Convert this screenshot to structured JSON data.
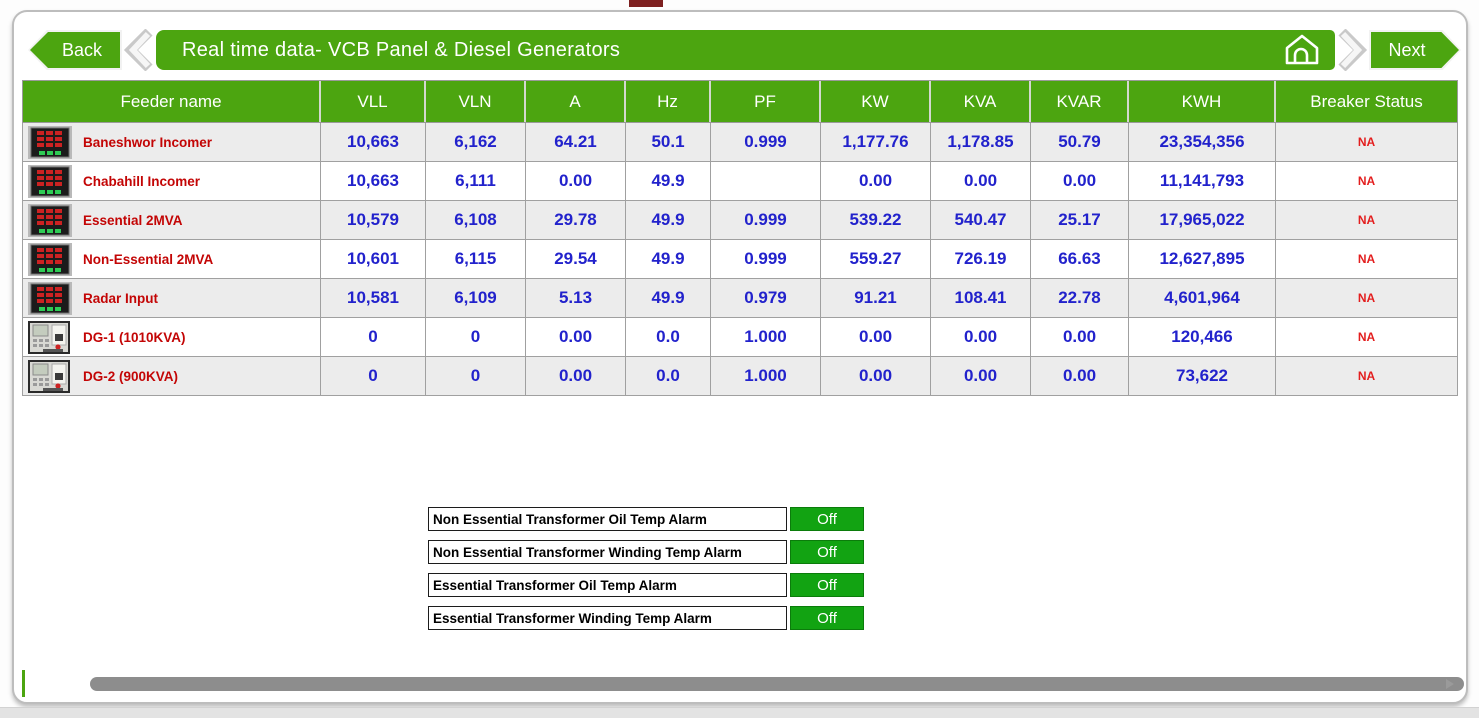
{
  "topbar": {
    "back_label": "Back",
    "title": "Real time data- VCB Panel & Diesel Generators",
    "next_label": "Next"
  },
  "table": {
    "columns": [
      "Feeder name",
      "VLL",
      "VLN",
      "A",
      "Hz",
      "PF",
      "KW",
      "KVA",
      "KVAR",
      "KWH",
      "Breaker Status"
    ],
    "rows": [
      {
        "icon": "power-meter-icon",
        "name": "Baneshwor Incomer",
        "vll": "10,663",
        "vln": "6,162",
        "a": "64.21",
        "hz": "50.1",
        "pf": "0.999",
        "kw": "1,177.76",
        "kva": "1,178.85",
        "kvar": "50.79",
        "kwh": "23,354,356",
        "breaker": "NA"
      },
      {
        "icon": "power-meter-icon",
        "name": "Chabahill Incomer",
        "vll": "10,663",
        "vln": "6,111",
        "a": "0.00",
        "hz": "49.9",
        "pf": "",
        "kw": "0.00",
        "kva": "0.00",
        "kvar": "0.00",
        "kwh": "11,141,793",
        "breaker": "NA"
      },
      {
        "icon": "power-meter-icon",
        "name": "Essential 2MVA",
        "vll": "10,579",
        "vln": "6,108",
        "a": "29.78",
        "hz": "49.9",
        "pf": "0.999",
        "kw": "539.22",
        "kva": "540.47",
        "kvar": "25.17",
        "kwh": "17,965,022",
        "breaker": "NA"
      },
      {
        "icon": "power-meter-icon",
        "name": "Non-Essential 2MVA",
        "vll": "10,601",
        "vln": "6,115",
        "a": "29.54",
        "hz": "49.9",
        "pf": "0.999",
        "kw": "559.27",
        "kva": "726.19",
        "kvar": "66.63",
        "kwh": "12,627,895",
        "breaker": "NA"
      },
      {
        "icon": "power-meter-icon",
        "name": "Radar Input",
        "vll": "10,581",
        "vln": "6,109",
        "a": "5.13",
        "hz": "49.9",
        "pf": "0.979",
        "kw": "91.21",
        "kva": "108.41",
        "kvar": "22.78",
        "kwh": "4,601,964",
        "breaker": "NA"
      },
      {
        "icon": "generator-controller-icon",
        "name": "DG-1 (1010KVA)",
        "vll": "0",
        "vln": "0",
        "a": "0.00",
        "hz": "0.0",
        "pf": "1.000",
        "kw": "0.00",
        "kva": "0.00",
        "kvar": "0.00",
        "kwh": "120,466",
        "breaker": "NA"
      },
      {
        "icon": "generator-controller-icon",
        "name": "DG-2 (900KVA)",
        "vll": "0",
        "vln": "0",
        "a": "0.00",
        "hz": "0.0",
        "pf": "1.000",
        "kw": "0.00",
        "kva": "0.00",
        "kvar": "0.00",
        "kwh": "73,622",
        "breaker": "NA"
      }
    ]
  },
  "alarms": [
    {
      "label": "Non Essential Transformer Oil Temp Alarm",
      "status": "Off"
    },
    {
      "label": "Non Essential Transformer Winding Temp Alarm",
      "status": "Off"
    },
    {
      "label": "Essential Transformer Oil Temp Alarm",
      "status": "Off"
    },
    {
      "label": "Essential Transformer Winding Temp Alarm",
      "status": "Off"
    }
  ],
  "colors": {
    "green": "#4ca510",
    "value_blue": "#2222cc",
    "feeder_red": "#c30505",
    "status_red": "#e31e1e",
    "off_green": "#12a312"
  }
}
